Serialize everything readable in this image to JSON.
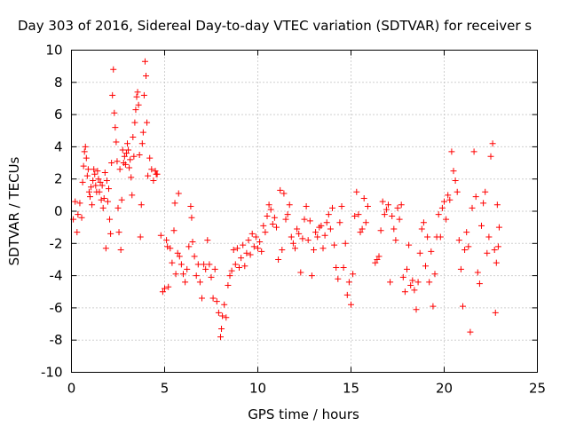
{
  "chart_data": {
    "type": "scatter",
    "title": "Day 303 of 2016, Sidereal Day-to-day VTEC variation (SDTVAR) for receiver s",
    "xlabel": "GPS time / hours",
    "ylabel": "SDTVAR / TECUs",
    "xlim": [
      0,
      25
    ],
    "ylim": [
      -10,
      10
    ],
    "xticks": [
      0,
      5,
      10,
      15,
      20,
      25
    ],
    "yticks": [
      -10,
      -8,
      -6,
      -4,
      -2,
      0,
      2,
      4,
      6,
      8,
      10
    ],
    "grid": true,
    "marker": "+",
    "color": "#ff0000",
    "series": [
      {
        "name": "SDTVAR",
        "points": [
          [
            0.1,
            -0.5
          ],
          [
            0.2,
            0.6
          ],
          [
            0.3,
            -1.3
          ],
          [
            0.35,
            -0.2
          ],
          [
            0.45,
            0.5
          ],
          [
            0.55,
            -0.4
          ],
          [
            0.6,
            1.8
          ],
          [
            0.65,
            2.8
          ],
          [
            0.7,
            3.7
          ],
          [
            0.75,
            4.0
          ],
          [
            0.8,
            3.3
          ],
          [
            0.85,
            2.2
          ],
          [
            0.9,
            2.6
          ],
          [
            0.95,
            1.2
          ],
          [
            1.0,
            0.9
          ],
          [
            1.05,
            1.5
          ],
          [
            1.1,
            0.4
          ],
          [
            1.15,
            1.9
          ],
          [
            1.2,
            2.6
          ],
          [
            1.25,
            2.3
          ],
          [
            1.3,
            1.6
          ],
          [
            1.35,
            1.2
          ],
          [
            1.4,
            2.5
          ],
          [
            1.45,
            2.0
          ],
          [
            1.5,
            1.2
          ],
          [
            1.55,
            1.8
          ],
          [
            1.6,
            0.7
          ],
          [
            1.65,
            1.6
          ],
          [
            1.7,
            0.2
          ],
          [
            1.75,
            0.8
          ],
          [
            1.8,
            2.4
          ],
          [
            1.85,
            -2.3
          ],
          [
            1.9,
            1.9
          ],
          [
            1.95,
            0.6
          ],
          [
            2.0,
            1.4
          ],
          [
            2.05,
            -0.5
          ],
          [
            2.1,
            -1.4
          ],
          [
            2.15,
            3.0
          ],
          [
            2.2,
            7.2
          ],
          [
            2.25,
            8.8
          ],
          [
            2.3,
            6.1
          ],
          [
            2.35,
            5.2
          ],
          [
            2.4,
            4.3
          ],
          [
            2.45,
            3.1
          ],
          [
            2.5,
            0.2
          ],
          [
            2.55,
            -1.3
          ],
          [
            2.6,
            2.6
          ],
          [
            2.65,
            -2.4
          ],
          [
            2.7,
            0.7
          ],
          [
            2.75,
            3.8
          ],
          [
            2.8,
            3.0
          ],
          [
            2.85,
            3.4
          ],
          [
            2.9,
            2.9
          ],
          [
            2.95,
            3.6
          ],
          [
            3.0,
            4.2
          ],
          [
            3.05,
            3.8
          ],
          [
            3.1,
            2.7
          ],
          [
            3.15,
            3.2
          ],
          [
            3.2,
            2.1
          ],
          [
            3.25,
            1.0
          ],
          [
            3.3,
            4.6
          ],
          [
            3.35,
            3.4
          ],
          [
            3.4,
            5.5
          ],
          [
            3.45,
            6.3
          ],
          [
            3.5,
            7.1
          ],
          [
            3.55,
            7.4
          ],
          [
            3.6,
            6.6
          ],
          [
            3.65,
            3.5
          ],
          [
            3.7,
            -1.6
          ],
          [
            3.75,
            0.4
          ],
          [
            3.8,
            4.2
          ],
          [
            3.85,
            4.9
          ],
          [
            3.9,
            7.2
          ],
          [
            3.95,
            9.3
          ],
          [
            4.0,
            8.4
          ],
          [
            4.05,
            5.5
          ],
          [
            4.1,
            2.2
          ],
          [
            4.2,
            3.3
          ],
          [
            4.3,
            2.6
          ],
          [
            4.4,
            1.9
          ],
          [
            4.5,
            2.5
          ],
          [
            4.55,
            2.3
          ],
          [
            4.6,
            2.3
          ],
          [
            4.8,
            -1.5
          ],
          [
            4.9,
            -5.0
          ],
          [
            5.0,
            -4.8
          ],
          [
            5.1,
            -1.8
          ],
          [
            5.15,
            -2.2
          ],
          [
            5.2,
            -4.7
          ],
          [
            5.3,
            -2.3
          ],
          [
            5.4,
            -3.2
          ],
          [
            5.5,
            -1.2
          ],
          [
            5.55,
            0.5
          ],
          [
            5.6,
            -3.9
          ],
          [
            5.7,
            -2.6
          ],
          [
            5.75,
            1.1
          ],
          [
            5.8,
            -2.8
          ],
          [
            5.9,
            -3.3
          ],
          [
            6.0,
            -3.9
          ],
          [
            6.1,
            -4.4
          ],
          [
            6.2,
            -3.6
          ],
          [
            6.3,
            -2.2
          ],
          [
            6.4,
            0.3
          ],
          [
            6.45,
            -0.4
          ],
          [
            6.5,
            -1.9
          ],
          [
            6.6,
            -2.8
          ],
          [
            6.7,
            -4.0
          ],
          [
            6.8,
            -3.3
          ],
          [
            6.9,
            -4.4
          ],
          [
            7.0,
            -5.4
          ],
          [
            7.1,
            -3.3
          ],
          [
            7.2,
            -3.6
          ],
          [
            7.3,
            -1.8
          ],
          [
            7.4,
            -3.3
          ],
          [
            7.5,
            -4.1
          ],
          [
            7.6,
            -5.4
          ],
          [
            7.7,
            -3.6
          ],
          [
            7.8,
            -5.6
          ],
          [
            7.9,
            -6.3
          ],
          [
            8.0,
            -7.8
          ],
          [
            8.05,
            -7.3
          ],
          [
            8.1,
            -6.5
          ],
          [
            8.2,
            -5.8
          ],
          [
            8.3,
            -6.6
          ],
          [
            8.4,
            -4.6
          ],
          [
            8.5,
            -4.0
          ],
          [
            8.6,
            -3.7
          ],
          [
            8.7,
            -2.4
          ],
          [
            8.8,
            -3.3
          ],
          [
            8.9,
            -2.3
          ],
          [
            9.0,
            -3.5
          ],
          [
            9.1,
            -2.9
          ],
          [
            9.2,
            -2.1
          ],
          [
            9.3,
            -3.4
          ],
          [
            9.4,
            -2.6
          ],
          [
            9.5,
            -1.8
          ],
          [
            9.6,
            -2.7
          ],
          [
            9.7,
            -1.4
          ],
          [
            9.8,
            -2.2
          ],
          [
            9.9,
            -1.6
          ],
          [
            10.0,
            -2.3
          ],
          [
            10.1,
            -1.9
          ],
          [
            10.2,
            -2.5
          ],
          [
            10.3,
            -0.9
          ],
          [
            10.4,
            -1.3
          ],
          [
            10.5,
            -0.3
          ],
          [
            10.6,
            0.4
          ],
          [
            10.7,
            0.1
          ],
          [
            10.8,
            -0.8
          ],
          [
            10.9,
            -0.4
          ],
          [
            11.0,
            -1.0
          ],
          [
            11.1,
            -3.0
          ],
          [
            11.2,
            1.3
          ],
          [
            11.3,
            -2.4
          ],
          [
            11.4,
            1.1
          ],
          [
            11.5,
            -0.5
          ],
          [
            11.6,
            -0.2
          ],
          [
            11.7,
            0.4
          ],
          [
            11.8,
            -1.6
          ],
          [
            11.9,
            -2.0
          ],
          [
            12.0,
            -2.3
          ],
          [
            12.1,
            -1.1
          ],
          [
            12.2,
            -1.4
          ],
          [
            12.3,
            -3.8
          ],
          [
            12.4,
            -1.7
          ],
          [
            12.5,
            -0.5
          ],
          [
            12.6,
            0.3
          ],
          [
            12.7,
            -1.8
          ],
          [
            12.8,
            -0.6
          ],
          [
            12.9,
            -4.0
          ],
          [
            13.0,
            -2.4
          ],
          [
            13.1,
            -1.3
          ],
          [
            13.2,
            -1.6
          ],
          [
            13.3,
            -1.0
          ],
          [
            13.4,
            -0.9
          ],
          [
            13.5,
            -2.3
          ],
          [
            13.6,
            -1.5
          ],
          [
            13.7,
            -0.7
          ],
          [
            13.8,
            -0.2
          ],
          [
            13.9,
            -1.1
          ],
          [
            14.0,
            0.2
          ],
          [
            14.1,
            -2.1
          ],
          [
            14.2,
            -3.5
          ],
          [
            14.3,
            -4.2
          ],
          [
            14.4,
            -0.7
          ],
          [
            14.5,
            0.3
          ],
          [
            14.6,
            -3.5
          ],
          [
            14.7,
            -2.0
          ],
          [
            14.8,
            -5.2
          ],
          [
            14.9,
            -4.4
          ],
          [
            15.0,
            -5.8
          ],
          [
            15.1,
            -3.9
          ],
          [
            15.2,
            -0.3
          ],
          [
            15.3,
            1.2
          ],
          [
            15.4,
            -0.2
          ],
          [
            15.5,
            -1.3
          ],
          [
            15.6,
            -1.1
          ],
          [
            15.7,
            0.8
          ],
          [
            15.8,
            -0.7
          ],
          [
            15.9,
            0.3
          ],
          [
            16.3,
            -3.2
          ],
          [
            16.4,
            -3.0
          ],
          [
            16.5,
            -2.8
          ],
          [
            16.6,
            -1.2
          ],
          [
            16.7,
            0.6
          ],
          [
            16.8,
            -0.2
          ],
          [
            16.9,
            0.1
          ],
          [
            17.0,
            0.4
          ],
          [
            17.1,
            -4.4
          ],
          [
            17.2,
            -0.3
          ],
          [
            17.3,
            -1.1
          ],
          [
            17.4,
            -1.8
          ],
          [
            17.5,
            0.2
          ],
          [
            17.6,
            -0.5
          ],
          [
            17.7,
            0.4
          ],
          [
            17.8,
            -4.1
          ],
          [
            17.9,
            -5.0
          ],
          [
            18.0,
            -3.6
          ],
          [
            18.1,
            -2.1
          ],
          [
            18.2,
            -4.6
          ],
          [
            18.3,
            -4.3
          ],
          [
            18.4,
            -4.9
          ],
          [
            18.5,
            -6.1
          ],
          [
            18.6,
            -4.4
          ],
          [
            18.7,
            -2.6
          ],
          [
            18.8,
            -1.1
          ],
          [
            18.9,
            -0.7
          ],
          [
            19.0,
            -3.4
          ],
          [
            19.1,
            -1.6
          ],
          [
            19.2,
            -4.4
          ],
          [
            19.3,
            -2.5
          ],
          [
            19.4,
            -5.9
          ],
          [
            19.5,
            -3.9
          ],
          [
            19.6,
            -1.6
          ],
          [
            19.7,
            -0.2
          ],
          [
            19.8,
            -1.6
          ],
          [
            19.9,
            0.2
          ],
          [
            20.0,
            0.6
          ],
          [
            20.1,
            -0.5
          ],
          [
            20.2,
            1.0
          ],
          [
            20.3,
            0.7
          ],
          [
            20.4,
            3.7
          ],
          [
            20.5,
            2.5
          ],
          [
            20.6,
            1.9
          ],
          [
            20.7,
            1.2
          ],
          [
            20.8,
            -1.8
          ],
          [
            20.9,
            -3.6
          ],
          [
            21.0,
            -5.9
          ],
          [
            21.1,
            -2.4
          ],
          [
            21.2,
            -1.3
          ],
          [
            21.3,
            -2.2
          ],
          [
            21.4,
            -7.5
          ],
          [
            21.5,
            0.2
          ],
          [
            21.6,
            3.7
          ],
          [
            21.7,
            0.9
          ],
          [
            21.8,
            -3.8
          ],
          [
            21.9,
            -4.5
          ],
          [
            22.0,
            -0.9
          ],
          [
            22.1,
            0.5
          ],
          [
            22.2,
            1.2
          ],
          [
            22.3,
            -2.6
          ],
          [
            22.4,
            -1.6
          ],
          [
            22.5,
            3.4
          ],
          [
            22.6,
            4.2
          ],
          [
            22.7,
            -2.4
          ],
          [
            22.75,
            -6.3
          ],
          [
            22.8,
            -3.2
          ],
          [
            22.85,
            0.4
          ],
          [
            22.9,
            -2.2
          ],
          [
            22.95,
            -1.0
          ]
        ]
      }
    ]
  }
}
